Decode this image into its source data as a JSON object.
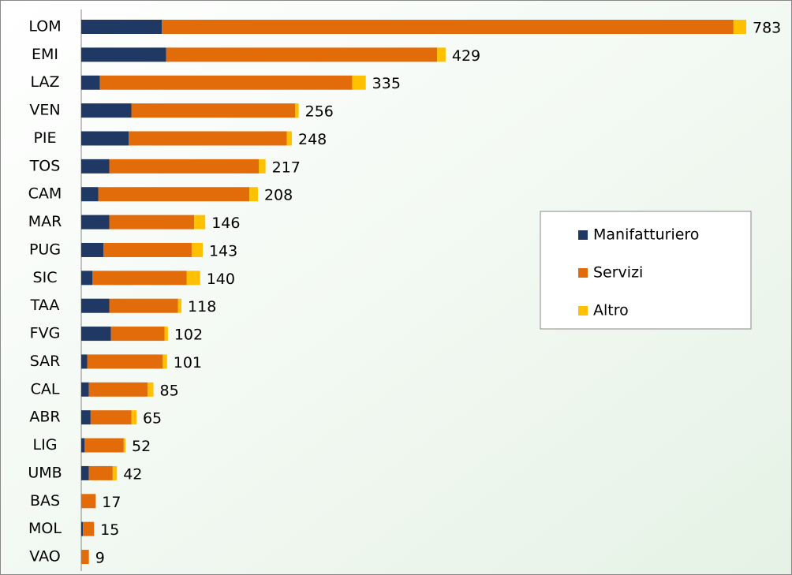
{
  "chart_data": {
    "type": "stacked-bar-horizontal",
    "categories": [
      "LOM",
      "EMI",
      "LAZ",
      "VEN",
      "PIE",
      "TOS",
      "CAM",
      "MAR",
      "PUG",
      "SIC",
      "TAA",
      "FVG",
      "SAR",
      "CAL",
      "ABR",
      "LIG",
      "UMB",
      "BAS",
      "MOL",
      "VAO"
    ],
    "series": [
      {
        "name": "Manifatturiero",
        "color": "#1f3864",
        "values": [
          95,
          100,
          22,
          59,
          56,
          33,
          20,
          33,
          26,
          13,
          33,
          35,
          7,
          9,
          11,
          4,
          9,
          0,
          2,
          0
        ]
      },
      {
        "name": "Servizi",
        "color": "#e36c0a",
        "values": [
          673,
          319,
          297,
          193,
          186,
          176,
          178,
          100,
          104,
          111,
          81,
          63,
          89,
          69,
          48,
          46,
          28,
          17,
          13,
          9
        ]
      },
      {
        "name": "Altro",
        "color": "#ffc000",
        "values": [
          15,
          10,
          16,
          4,
          6,
          8,
          10,
          13,
          13,
          16,
          4,
          4,
          5,
          7,
          6,
          2,
          5,
          0,
          0,
          0
        ]
      }
    ],
    "totals": [
      783,
      429,
      335,
      256,
      248,
      217,
      208,
      146,
      143,
      140,
      118,
      102,
      101,
      85,
      65,
      52,
      42,
      17,
      15,
      9
    ],
    "legend": "right"
  }
}
